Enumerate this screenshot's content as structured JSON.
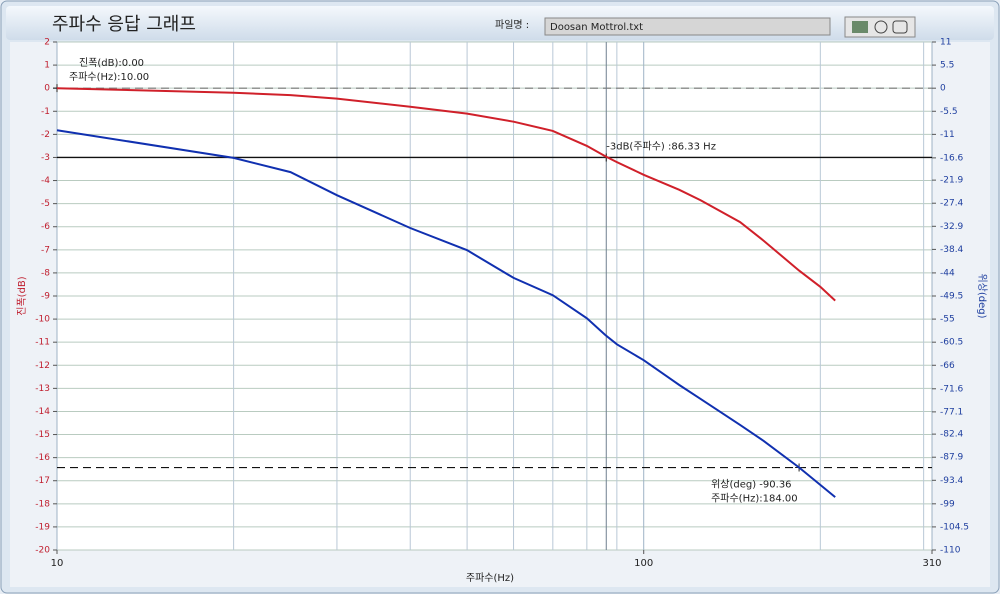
{
  "file_label": "파일명 :",
  "file_name": "Doosan Mottrol.txt",
  "chart_data": {
    "type": "line",
    "title": "주파수 응답 그래프",
    "xlabel": "주파수(Hz)",
    "ylabel": "진폭(dB)",
    "y2label": "위상(deg)",
    "log_x": true,
    "xlim": [
      10,
      310
    ],
    "xticks": [
      10,
      100,
      310
    ],
    "xminor": [
      20,
      30,
      40,
      50,
      60,
      70,
      80,
      90,
      200,
      300
    ],
    "ylim": [
      -20,
      2
    ],
    "yticks": [
      -20,
      -19,
      -18,
      -17,
      -16,
      -15,
      -14,
      -13,
      -12,
      -11,
      -10,
      -9,
      -8,
      -7,
      -6,
      -5,
      -4,
      -3,
      -2,
      -1,
      0,
      1,
      2
    ],
    "y2lim": [
      -110,
      11
    ],
    "y2ticks": [
      -110,
      -104.5,
      -99,
      -93.4,
      -87.9,
      -82.4,
      -77.1,
      -71.6,
      -66,
      -60.5,
      -55,
      -49.5,
      -44,
      -38.4,
      -32.9,
      -27.4,
      -21.9,
      -16.6,
      -11,
      -5.5,
      0,
      5.5,
      11
    ],
    "grid": true,
    "x": [
      10,
      20,
      25,
      30,
      40,
      50,
      60,
      70,
      80,
      86,
      90,
      100,
      115,
      125,
      146,
      160,
      184,
      200,
      212
    ],
    "series": [
      {
        "name": "진폭(dB)",
        "color": "#d0202a",
        "axis": "y",
        "values": [
          0,
          -0.2,
          -0.3,
          -0.45,
          -0.8,
          -1.1,
          -1.45,
          -1.85,
          -2.5,
          -2.95,
          -3.2,
          -3.75,
          -4.4,
          -4.85,
          -5.8,
          -6.6,
          -7.9,
          -8.6,
          -9.2
        ]
      },
      {
        "name": "위상(deg)",
        "color": "#1030b0",
        "axis": "y2",
        "values": [
          -10,
          -16.6,
          -20,
          -25.5,
          -33.3,
          -38.6,
          -45.2,
          -49.3,
          -54.8,
          -58.8,
          -61,
          -64.8,
          -70.7,
          -74,
          -80.2,
          -84,
          -90.36,
          -94.5,
          -97.4
        ]
      }
    ],
    "cursors": [
      {
        "labels": [
          "진폭(dB):0.00",
          "주파수(Hz):10.00"
        ],
        "x": 10,
        "y": 0,
        "axis": "y",
        "style": "dashed"
      },
      {
        "labels": [
          "-3dB(주파수) :86.33 Hz"
        ],
        "x": 86.33,
        "y": -3,
        "axis": "y",
        "style": "solid"
      },
      {
        "labels": [
          "위상(deg) -90.36",
          "주파수(Hz):184.00"
        ],
        "x": 184,
        "y": -90.36,
        "axis": "y2",
        "style": "dashed"
      }
    ]
  }
}
